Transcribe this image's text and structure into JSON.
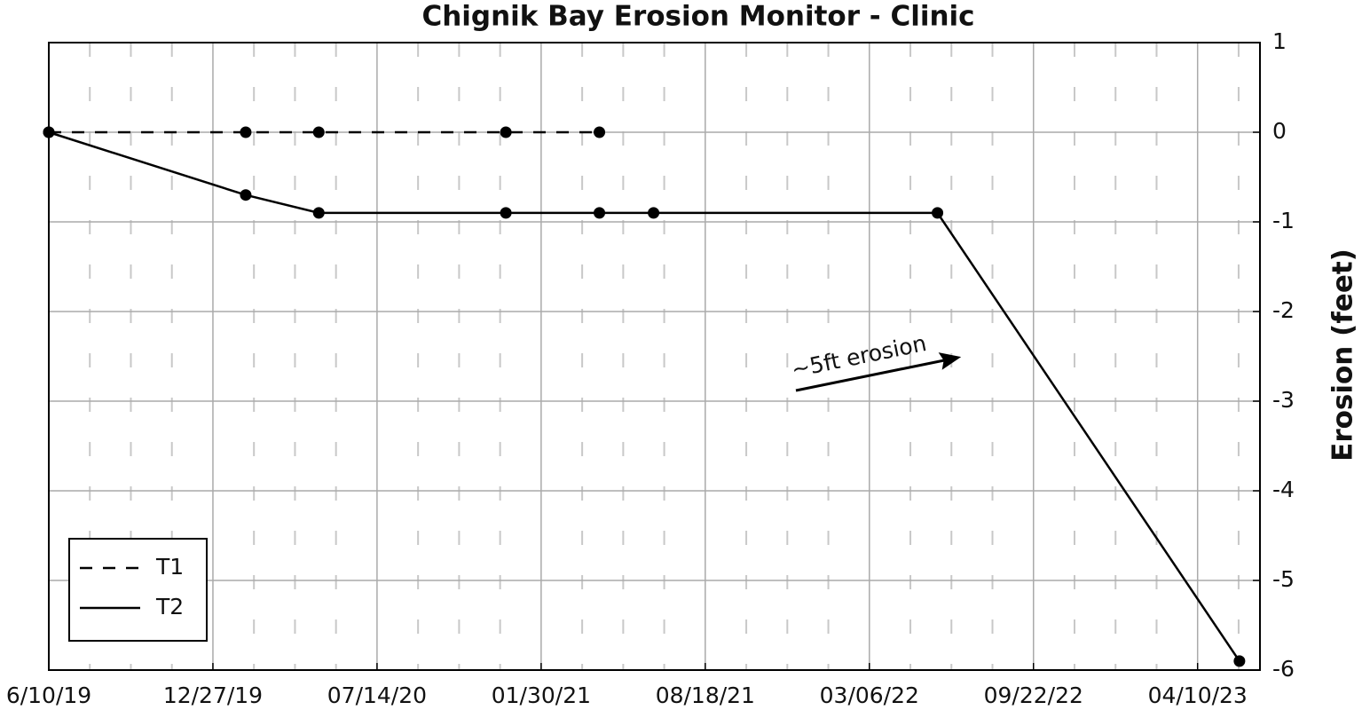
{
  "chart_data": {
    "type": "line",
    "title": "Chignik Bay Erosion Monitor - Clinic",
    "y_label": "Erosion (feet)",
    "annotation": "~5ft erosion",
    "grid": true,
    "minor_grid": true,
    "legend_position": "lower left",
    "xlim": [
      "2019-06-10",
      "2023-06-25"
    ],
    "xticks": [
      {
        "value": "2019-06-10",
        "label": "6/10/19"
      },
      {
        "value": "2019-12-27",
        "label": "12/27/19"
      },
      {
        "value": "2020-07-14",
        "label": "07/14/20"
      },
      {
        "value": "2021-01-30",
        "label": "01/30/21"
      },
      {
        "value": "2021-08-18",
        "label": "08/18/21"
      },
      {
        "value": "2022-03-06",
        "label": "03/06/22"
      },
      {
        "value": "2022-09-22",
        "label": "09/22/22"
      },
      {
        "value": "2023-04-10",
        "label": "04/10/23"
      }
    ],
    "ylim": [
      -6,
      1
    ],
    "yticks": [
      -6,
      -5,
      -4,
      -3,
      -2,
      -1,
      0,
      1
    ],
    "series": [
      {
        "name": "T1",
        "color": "#000000",
        "dash": "dashed",
        "x": [
          "2019-06-10",
          "2020-02-05",
          "2020-05-04",
          "2020-12-18",
          "2021-04-11"
        ],
        "values": [
          0,
          0,
          0,
          0,
          0
        ]
      },
      {
        "name": "T2",
        "color": "#000000",
        "dash": "solid",
        "x": [
          "2019-06-10",
          "2020-02-05",
          "2020-05-04",
          "2020-12-18",
          "2021-04-11",
          "2021-06-16",
          "2022-05-28",
          "2023-05-31"
        ],
        "values": [
          0,
          -0.7,
          -0.9,
          -0.9,
          -0.9,
          -0.9,
          -0.9,
          -5.9
        ]
      }
    ]
  }
}
